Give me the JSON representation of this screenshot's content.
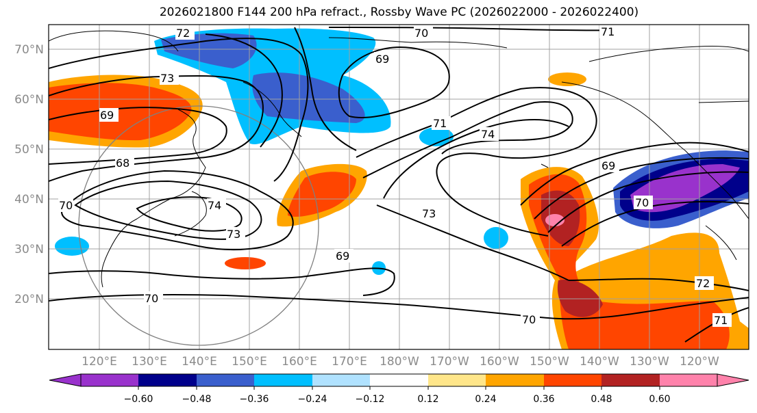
{
  "title": "2026021800 F144 200 hPa refract., Rossby Wave PC (2026022000 - 2026022400)",
  "map": {
    "lat_labels": [
      "70°N",
      "60°N",
      "50°N",
      "40°N",
      "30°N",
      "20°N"
    ],
    "lon_labels": [
      "120°E",
      "130°E",
      "140°E",
      "150°E",
      "160°E",
      "170°E",
      "180°W",
      "170°W",
      "160°W",
      "150°W",
      "140°W",
      "130°W",
      "120°W"
    ]
  },
  "contour_labels": [
    "72",
    "70",
    "71",
    "69",
    "73",
    "69",
    "71",
    "74",
    "68",
    "70",
    "69",
    "74",
    "70",
    "73",
    "73",
    "69",
    "70",
    "70",
    "72",
    "71"
  ],
  "colorbar": {
    "tick_labels": [
      "−0.60",
      "−0.48",
      "−0.36",
      "−0.24",
      "−0.12",
      "0.12",
      "0.24",
      "0.36",
      "0.48",
      "0.60"
    ],
    "colors": [
      "#9932cc",
      "#00008b",
      "#3a5fcd",
      "#00bfff",
      "#b0e2ff",
      "#ffffff",
      "#ffe68a",
      "#ffa500",
      "#ff4500",
      "#b22222",
      "#ff82ab"
    ]
  }
}
